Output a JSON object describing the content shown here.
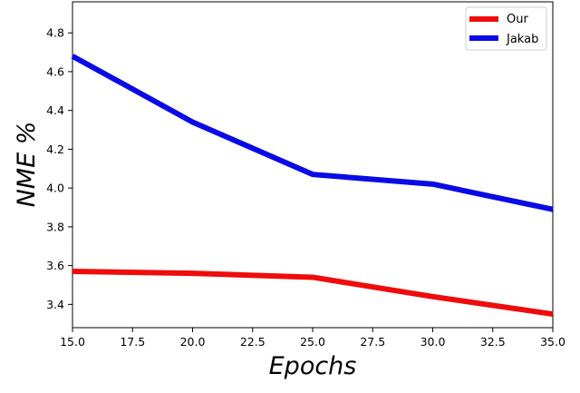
{
  "chart_data": {
    "type": "line",
    "title": "",
    "xlabel": "Epochs",
    "ylabel": "NME %",
    "xlim": [
      15,
      35
    ],
    "ylim": [
      3.28,
      4.96
    ],
    "x_ticks": [
      "15.0",
      "17.5",
      "20.0",
      "22.5",
      "25.0",
      "27.5",
      "30.0",
      "32.5",
      "35.0"
    ],
    "y_ticks": [
      "3.4",
      "3.6",
      "3.8",
      "4.0",
      "4.2",
      "4.4",
      "4.6",
      "4.8"
    ],
    "grid": false,
    "legend_position": "top-right",
    "series": [
      {
        "name": "Our",
        "color": "#ee0c0c",
        "x": [
          15,
          20,
          25,
          30,
          35
        ],
        "y": [
          3.57,
          3.56,
          3.54,
          3.44,
          3.35
        ]
      },
      {
        "name": "Jakab",
        "color": "#0a0ae6",
        "x": [
          15,
          20,
          25,
          30,
          35
        ],
        "y": [
          4.68,
          4.34,
          4.07,
          4.02,
          3.89
        ]
      }
    ]
  }
}
